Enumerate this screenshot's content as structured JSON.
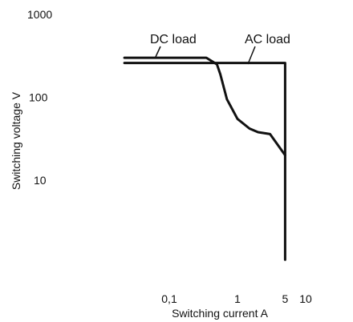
{
  "chart_data": {
    "type": "line",
    "title": "",
    "xlabel": "Switching current A",
    "ylabel": "Switching voltage V",
    "x_scale": "log",
    "y_scale": "log",
    "xlim": [
      0.02,
      10
    ],
    "ylim": [
      1,
      1000
    ],
    "grid": false,
    "x_ticks": [
      {
        "value": 0.1,
        "label": "0,1"
      },
      {
        "value": 1,
        "label": "1"
      },
      {
        "value": 5,
        "label": "5"
      },
      {
        "value": 10,
        "label": "10"
      }
    ],
    "y_ticks": [
      {
        "value": 1000,
        "label": "1000"
      },
      {
        "value": 100,
        "label": "100"
      },
      {
        "value": 10,
        "label": "10"
      }
    ],
    "series": [
      {
        "name": "DC load",
        "x": [
          0.022,
          0.35,
          0.5,
          0.56,
          0.7,
          1.0,
          1.5,
          2.0,
          3.0,
          5.0
        ],
        "y": [
          300,
          300,
          250,
          190,
          95,
          55,
          42,
          38,
          36,
          20
        ]
      },
      {
        "name": "AC load",
        "x": [
          0.022,
          5.0,
          5.0
        ],
        "y": [
          260,
          260,
          1.1
        ]
      }
    ],
    "annotations": [
      {
        "text": "DC load",
        "x": 0.5,
        "y": 280
      },
      {
        "text": "AC load",
        "x": 2.0,
        "y": 262
      }
    ]
  }
}
